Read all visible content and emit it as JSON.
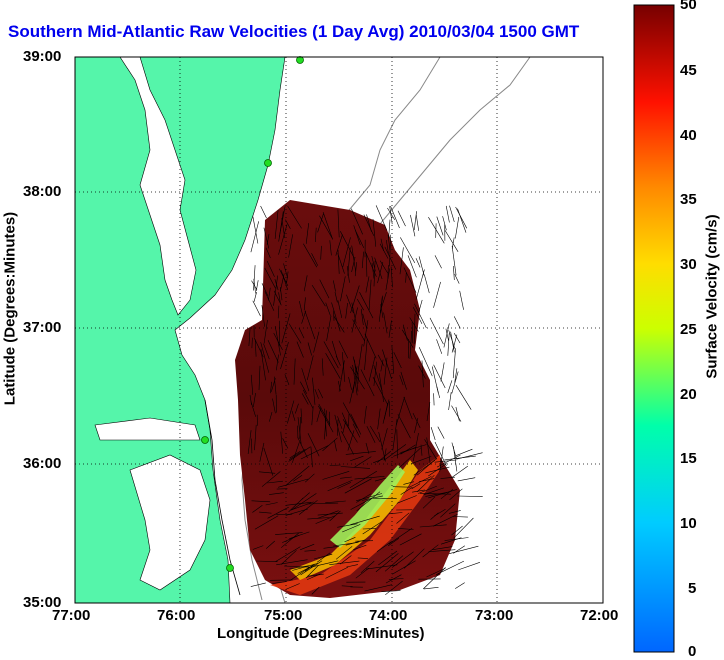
{
  "title": "Southern Mid-Atlantic Raw Velocities (1 Day Avg) 2010/03/04 1500 GMT",
  "x_axis": {
    "label": "Longitude (Degrees:Minutes)",
    "ticks": [
      "77:00",
      "76:00",
      "75:00",
      "74:00",
      "73:00",
      "72:00"
    ]
  },
  "y_axis": {
    "label": "Latitude (Degrees:Minutes)",
    "ticks": [
      "39:00",
      "38:00",
      "37:00",
      "36:00",
      "35:00"
    ]
  },
  "colorbar": {
    "label": "Surface Velocity (cm/s)",
    "ticks": [
      "50",
      "45",
      "40",
      "35",
      "30",
      "25",
      "20",
      "15",
      "10",
      "5",
      "0"
    ]
  },
  "colors": {
    "land": "#55f5aa",
    "title": "#0000ee",
    "station": "#22dd22"
  },
  "map_extent": {
    "lon_west": -77,
    "lon_east": -72,
    "lat_south": 35,
    "lat_north": 39
  }
}
